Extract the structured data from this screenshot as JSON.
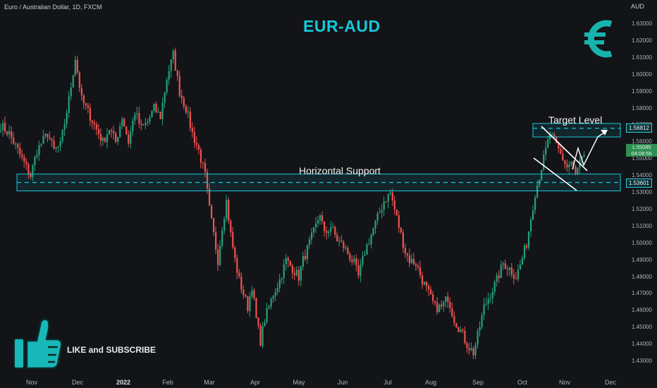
{
  "header": {
    "symbol_line": "Euro / Australian Dollar, 1D, FXCM",
    "currency": "AUD"
  },
  "title": "EUR-AUD",
  "cta": "LIKE and SUBSCRIBE",
  "icons": {
    "euro": "euro-sign-icon",
    "like": "thumbs-up-icon"
  },
  "colors": {
    "accent": "#16c8d8",
    "up": "#26a17a",
    "down": "#ef5350",
    "background": "#121418"
  },
  "chart_data": {
    "type": "candlestick",
    "title": "EUR-AUD",
    "ylabel": "AUD",
    "ylim": [
      1.425,
      1.645
    ],
    "y_ticks": [
      "1.63000",
      "1.62000",
      "1.61000",
      "1.60000",
      "1.59000",
      "1.58000",
      "1.57000",
      "1.56000",
      "1.55000",
      "1.54000",
      "1.53000",
      "1.52000",
      "1.51000",
      "1.50000",
      "1.49000",
      "1.48000",
      "1.47000",
      "1.46000",
      "1.45000",
      "1.44000",
      "1.43000"
    ],
    "x_ticks": [
      {
        "label": "Nov",
        "bold": false
      },
      {
        "label": "Dec",
        "bold": false
      },
      {
        "label": "2022",
        "bold": true
      },
      {
        "label": "Feb",
        "bold": false
      },
      {
        "label": "Mar",
        "bold": false
      },
      {
        "label": "Apr",
        "bold": false
      },
      {
        "label": "May",
        "bold": false
      },
      {
        "label": "Jun",
        "bold": false
      },
      {
        "label": "Jul",
        "bold": false
      },
      {
        "label": "Aug",
        "bold": false
      },
      {
        "label": "Sep",
        "bold": false
      },
      {
        "label": "Oct",
        "bold": false
      },
      {
        "label": "Nov",
        "bold": false
      },
      {
        "label": "Dec",
        "bold": false
      }
    ],
    "anchors": [
      [
        0,
        1.57
      ],
      [
        4,
        1.565
      ],
      [
        8,
        1.555
      ],
      [
        12,
        1.545
      ],
      [
        14,
        1.54
      ],
      [
        17,
        1.555
      ],
      [
        22,
        1.565
      ],
      [
        25,
        1.555
      ],
      [
        28,
        1.558
      ],
      [
        32,
        1.585
      ],
      [
        35,
        1.61
      ],
      [
        38,
        1.585
      ],
      [
        41,
        1.578
      ],
      [
        44,
        1.57
      ],
      [
        48,
        1.56
      ],
      [
        51,
        1.568
      ],
      [
        54,
        1.56
      ],
      [
        57,
        1.575
      ],
      [
        60,
        1.56
      ],
      [
        63,
        1.578
      ],
      [
        66,
        1.568
      ],
      [
        69,
        1.572
      ],
      [
        72,
        1.58
      ],
      [
        75,
        1.575
      ],
      [
        78,
        1.598
      ],
      [
        81,
        1.612
      ],
      [
        84,
        1.59
      ],
      [
        87,
        1.58
      ],
      [
        90,
        1.565
      ],
      [
        93,
        1.555
      ],
      [
        96,
        1.54
      ],
      [
        98,
        1.52
      ],
      [
        100,
        1.505
      ],
      [
        102,
        1.49
      ],
      [
        104,
        1.51
      ],
      [
        106,
        1.525
      ],
      [
        108,
        1.505
      ],
      [
        110,
        1.49
      ],
      [
        112,
        1.478
      ],
      [
        114,
        1.47
      ],
      [
        116,
        1.462
      ],
      [
        118,
        1.475
      ],
      [
        120,
        1.455
      ],
      [
        122,
        1.442
      ],
      [
        124,
        1.455
      ],
      [
        126,
        1.462
      ],
      [
        128,
        1.47
      ],
      [
        131,
        1.478
      ],
      [
        134,
        1.49
      ],
      [
        137,
        1.485
      ],
      [
        140,
        1.48
      ],
      [
        142,
        1.49
      ],
      [
        145,
        1.5
      ],
      [
        148,
        1.51
      ],
      [
        150,
        1.518
      ],
      [
        152,
        1.505
      ],
      [
        155,
        1.51
      ],
      [
        158,
        1.502
      ],
      [
        161,
        1.498
      ],
      [
        164,
        1.492
      ],
      [
        166,
        1.488
      ],
      [
        168,
        1.48
      ],
      [
        171,
        1.495
      ],
      [
        174,
        1.505
      ],
      [
        177,
        1.515
      ],
      [
        180,
        1.525
      ],
      [
        183,
        1.53
      ],
      [
        185,
        1.52
      ],
      [
        188,
        1.505
      ],
      [
        190,
        1.495
      ],
      [
        192,
        1.49
      ],
      [
        195,
        1.488
      ],
      [
        198,
        1.478
      ],
      [
        201,
        1.47
      ],
      [
        204,
        1.462
      ],
      [
        207,
        1.462
      ],
      [
        210,
        1.468
      ],
      [
        213,
        1.455
      ],
      [
        216,
        1.448
      ],
      [
        219,
        1.44
      ],
      [
        222,
        1.435
      ],
      [
        224,
        1.445
      ],
      [
        227,
        1.462
      ],
      [
        230,
        1.47
      ],
      [
        233,
        1.478
      ],
      [
        236,
        1.488
      ],
      [
        239,
        1.485
      ],
      [
        242,
        1.48
      ],
      [
        244,
        1.487
      ],
      [
        247,
        1.5
      ],
      [
        249,
        1.515
      ],
      [
        251,
        1.53
      ],
      [
        254,
        1.545
      ],
      [
        256,
        1.555
      ],
      [
        258,
        1.565
      ],
      [
        260,
        1.56
      ],
      [
        262,
        1.555
      ],
      [
        264,
        1.55
      ],
      [
        266,
        1.545
      ],
      [
        268,
        1.548
      ],
      [
        270,
        1.54
      ],
      [
        272,
        1.548
      ],
      [
        274,
        1.55
      ]
    ],
    "n_candles": 275,
    "last_close": 1.5485,
    "price_box": [
      "1.55085",
      "04:08:56"
    ],
    "lines": [
      {
        "name": "Target Level",
        "price": 1.56812,
        "tag": "1.56812",
        "zone": [
          1.563,
          1.571
        ]
      },
      {
        "name": "Horizontal Support",
        "price": 1.53601,
        "tag": "1.53601",
        "zone": [
          1.531,
          1.541
        ]
      }
    ],
    "annotations": [
      "Target Level",
      "Horizontal Support"
    ],
    "grid": false
  }
}
